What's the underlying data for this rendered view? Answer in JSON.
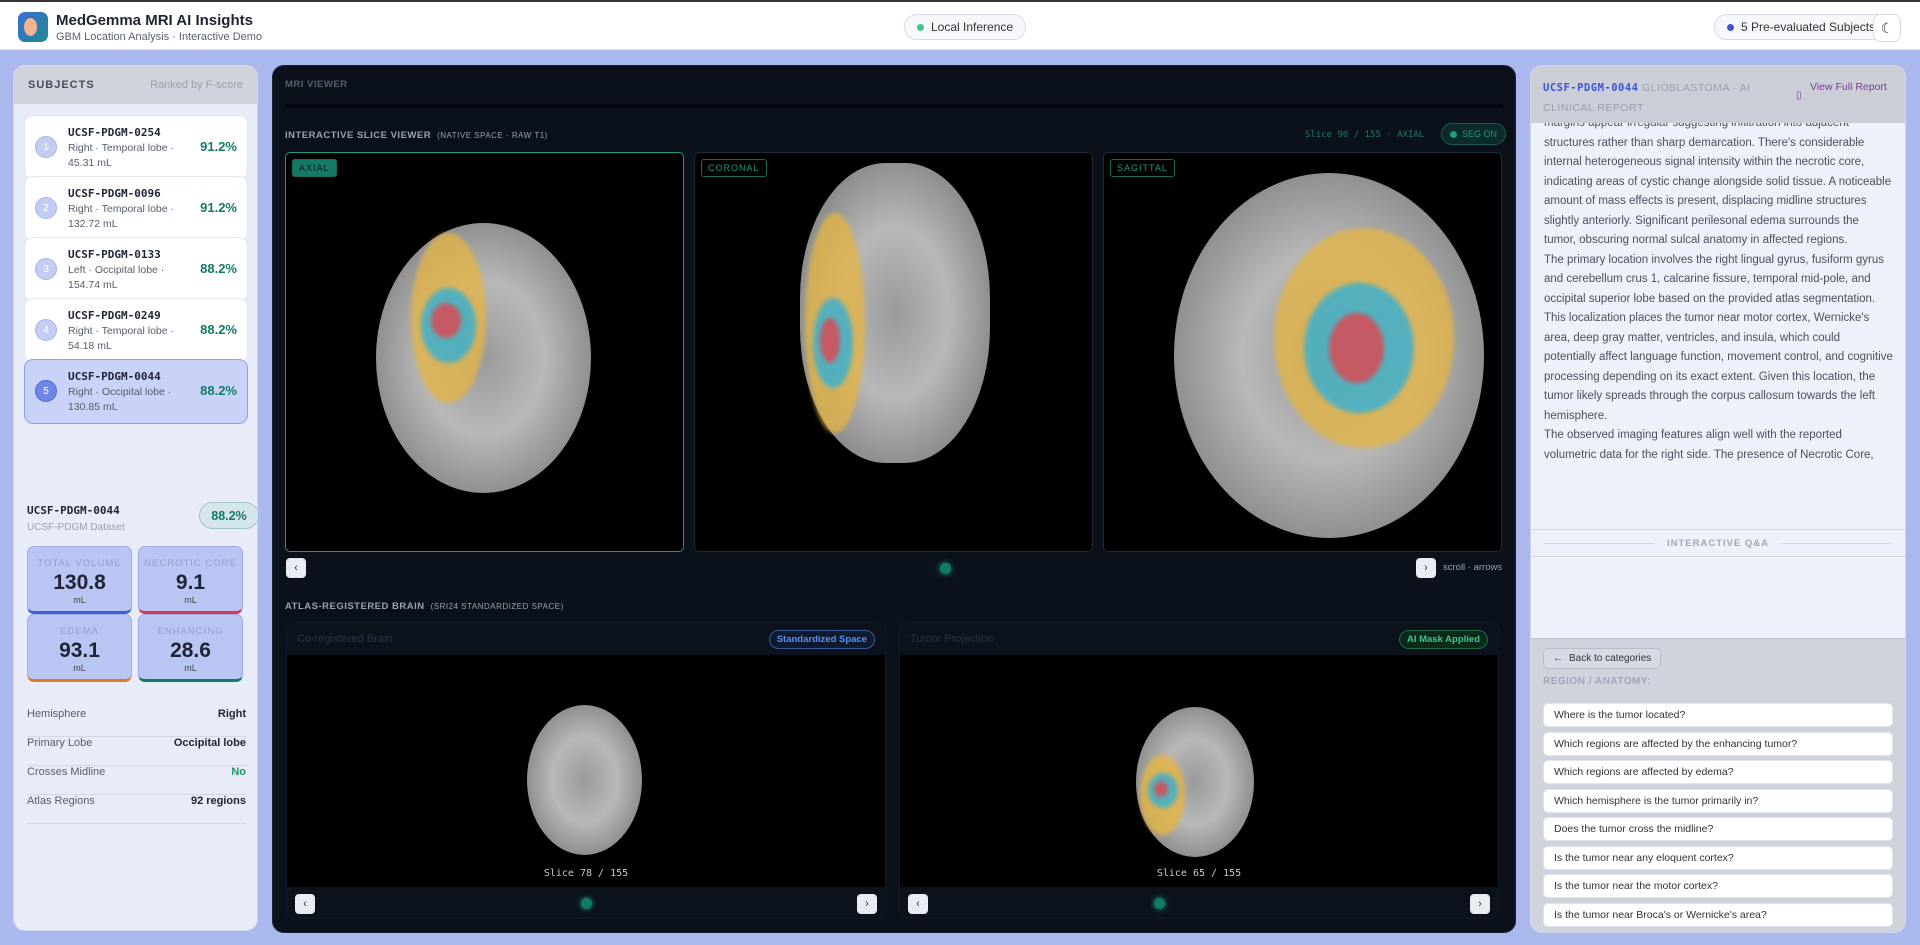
{
  "header": {
    "title": "MedGemma MRI AI Insights",
    "subtitle": "GBM Location Analysis · Interactive Demo",
    "inference": "Local Inference",
    "subjects_badge": "5 Pre-evaluated Subjects",
    "accent": "#3e55d6"
  },
  "subjects": {
    "title": "SUBJECTS",
    "sort": "Ranked by F-score",
    "items": [
      {
        "rank": "1",
        "id": "UCSF-PDGM-0254",
        "desc": "Right · Temporal lobe · 45.31 mL",
        "score": "91.2%"
      },
      {
        "rank": "2",
        "id": "UCSF-PDGM-0096",
        "desc": "Right · Temporal lobe · 132.72 mL",
        "score": "91.2%"
      },
      {
        "rank": "3",
        "id": "UCSF-PDGM-0133",
        "desc": "Left · Occipital lobe · 154.74 mL",
        "score": "88.2%"
      },
      {
        "rank": "4",
        "id": "UCSF-PDGM-0249",
        "desc": "Right · Temporal lobe · 54.18 mL",
        "score": "88.2%"
      },
      {
        "rank": "5",
        "id": "UCSF-PDGM-0044",
        "desc": "Right · Occipital lobe · 130.85 mL",
        "score": "88.2%",
        "selected": true
      }
    ]
  },
  "detail": {
    "id": "UCSF-PDGM-0044",
    "dataset": "UCSF-PDGM Dataset",
    "score": "88.2%",
    "metrics": [
      {
        "label": "TOTAL VOLUME",
        "value": "130.8",
        "unit": "mL",
        "color": "#3e5fd8"
      },
      {
        "label": "NECROTIC CORE",
        "value": "9.1",
        "unit": "mL",
        "color": "#e0344f"
      },
      {
        "label": "EDEMA",
        "value": "93.1",
        "unit": "mL",
        "color": "#e07a22"
      },
      {
        "label": "ENHANCING",
        "value": "28.6",
        "unit": "mL",
        "color": "#137a66"
      }
    ],
    "rows": [
      {
        "label": "Hemisphere",
        "value": "Right"
      },
      {
        "label": "Primary Lobe",
        "value": "Occipital lobe"
      },
      {
        "label": "Crosses Midline",
        "value": "No"
      },
      {
        "label": "Atlas Regions",
        "value": "92 regions"
      }
    ]
  },
  "viewer": {
    "title": "MRI VIEWER",
    "slice_title": "INTERACTIVE SLICE VIEWER",
    "slice_sub": "(NATIVE SPACE · RAW T1)",
    "slice_info": "Slice 90 / 155 · AXIAL",
    "seg": "SEG ON",
    "views": [
      "AXIAL",
      "CORONAL",
      "SAGITTAL"
    ],
    "active_view": "AXIAL",
    "hint": "scroll · arrows",
    "atlas_title": "ATLAS-REGISTERED BRAIN",
    "atlas_sub": "(SRI24 STANDARDIZED SPACE)",
    "atlas": [
      {
        "title": "Co-registered Brain",
        "badge": "Standardized Space",
        "slice": "Slice 78 / 155"
      },
      {
        "title": "Tumor Projection",
        "badge": "AI Mask Applied",
        "slice": "Slice 65 / 155"
      }
    ]
  },
  "report": {
    "id": "UCSF-PDGM-0044",
    "title": "GLIOBLASTOMA · AI CLINICAL REPORT",
    "link": "View Full Report",
    "paragraphs": [
      "margins appear irregular suggesting infiltration into adjacent structures rather than sharp demarcation. There's considerable internal heterogeneous signal intensity within the necrotic core, indicating areas of cystic change alongside solid tissue. A noticeable amount of mass effects is present, displacing midline structures slightly anteriorly. Significant perilesonal edema surrounds the tumor, obscuring normal sulcal anatomy in affected regions.",
      "The primary location involves the right lingual gyrus, fusiform gyrus and cerebellum crus 1, calcarine fissure, temporal mid-pole, and occipital superior lobe based on the provided atlas segmentation. This localization places the tumor near motor cortex, Wernicke's area, deep gray matter, ventricles, and insula, which could potentially affect language function, movement control, and cognitive processing depending on its exact extent. Given this location, the tumor likely spreads through the corpus callosum towards the left hemisphere.",
      "The observed imaging features align well with the reported volumetric data for the right side. The presence of Necrotic Core,"
    ],
    "qa_title": "INTERACTIVE Q&A",
    "back": "Back to categories",
    "category": "REGION / ANATOMY:",
    "questions": [
      "Where is the tumor located?",
      "Which regions are affected by the enhancing tumor?",
      "Which regions are affected by edema?",
      "Which hemisphere is the tumor primarily in?",
      "Does the tumor cross the midline?",
      "Is the tumor near any eloquent cortex?",
      "Is the tumor near the motor cortex?",
      "Is the tumor near Broca's or Wernicke's area?"
    ]
  }
}
